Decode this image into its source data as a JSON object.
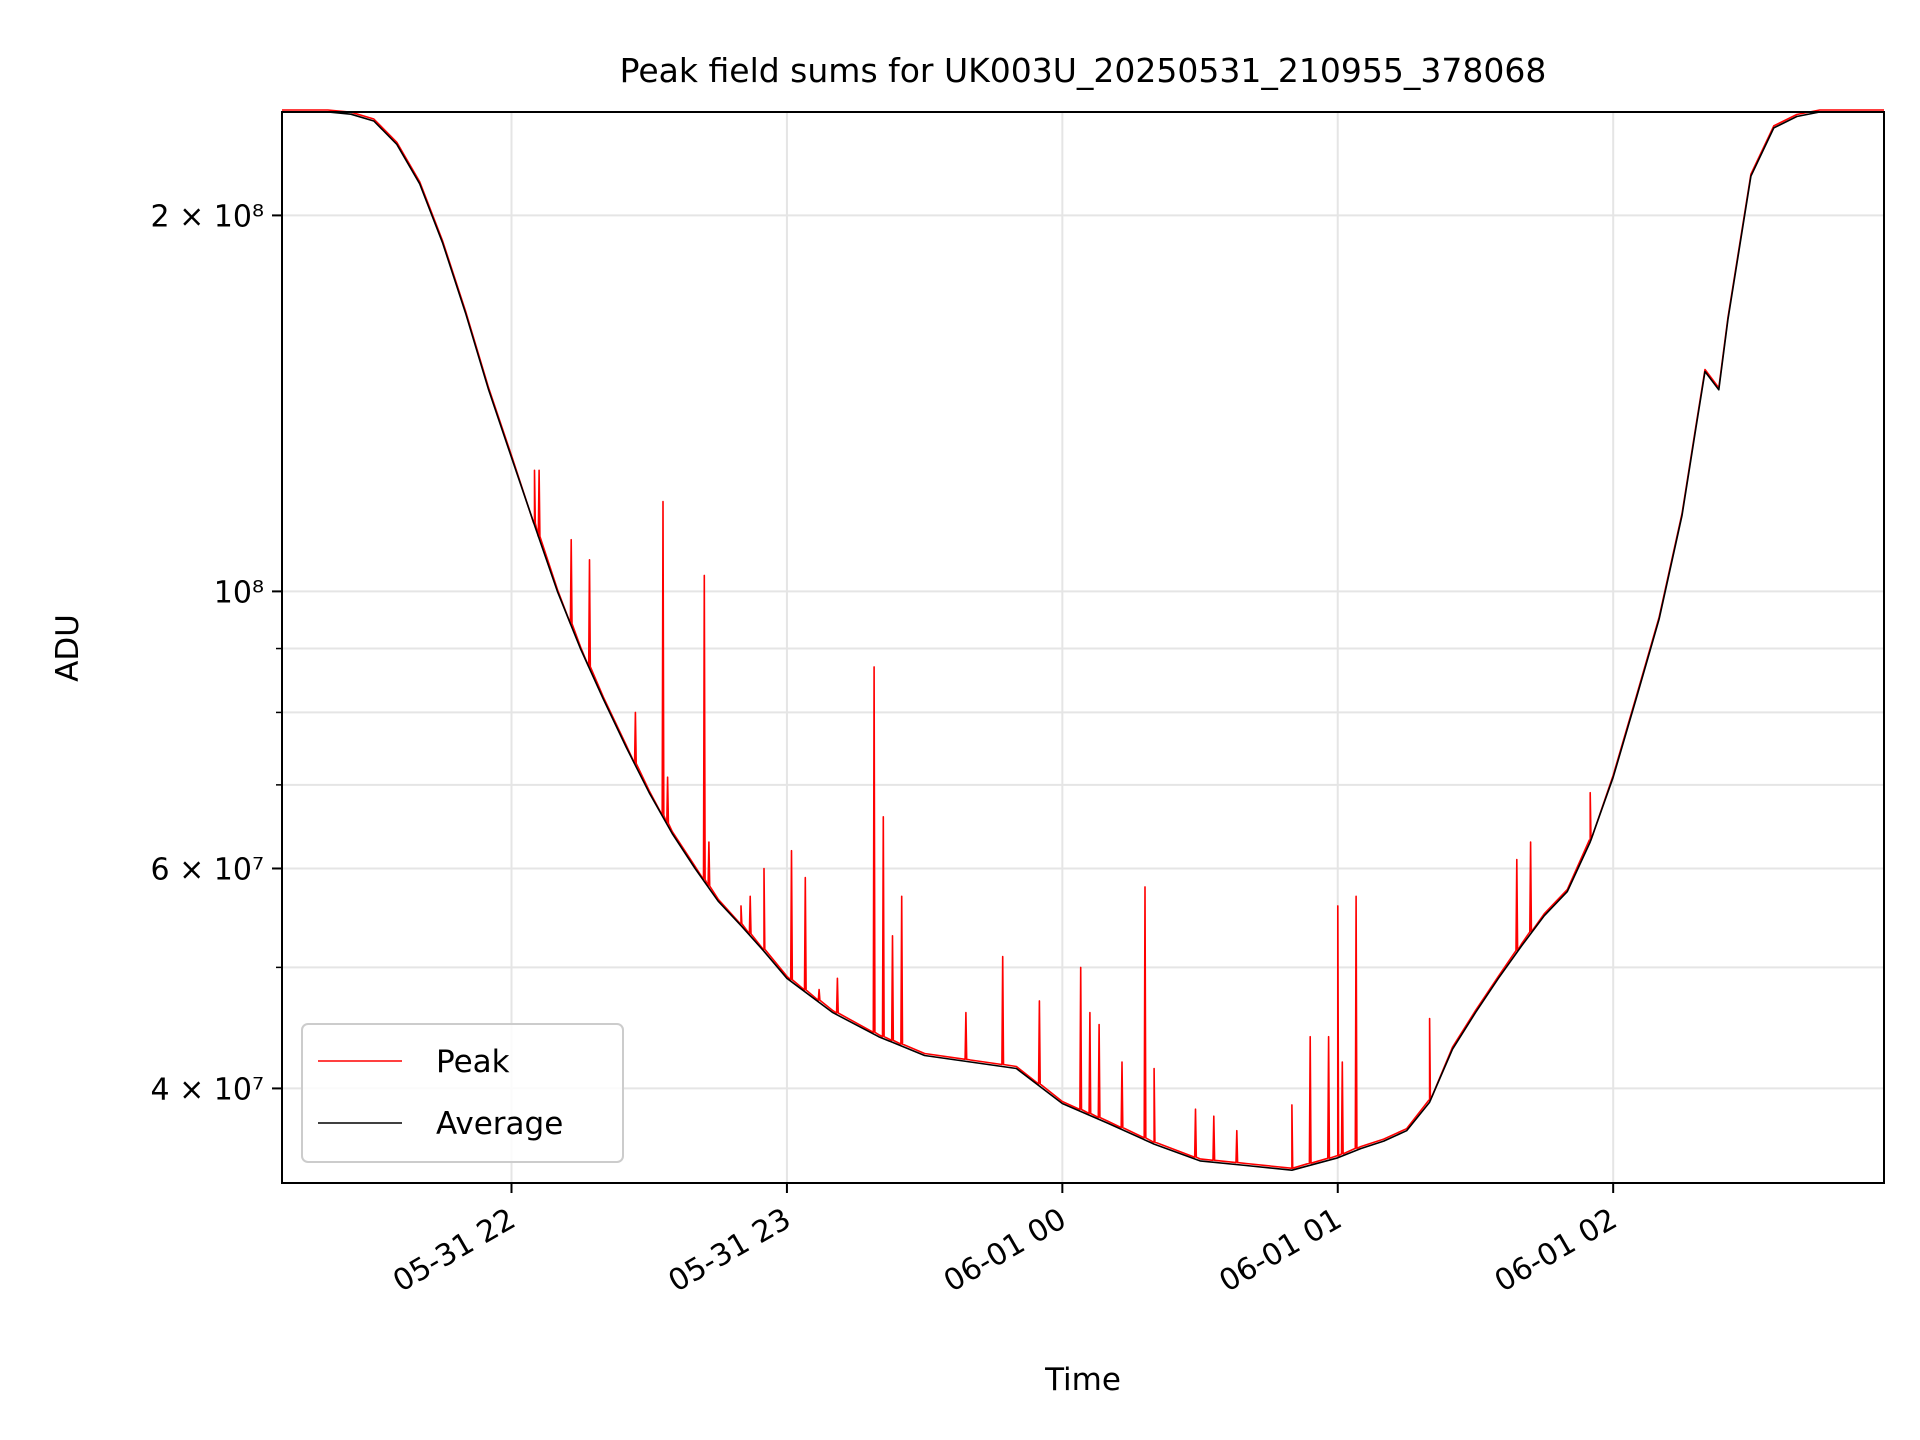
{
  "colors": {
    "peak": "#ff0000",
    "average": "#000000",
    "grid": "#e5e5e5",
    "axis": "#000000",
    "background": "#ffffff"
  },
  "chart_data": {
    "type": "line",
    "title": "Peak field sums for UK003U_20250531_210955_378068",
    "xlabel": "Time",
    "ylabel": "ADU",
    "y_scale": "log",
    "x_date_range": [
      "2025-05-31 21:10",
      "2025-06-01 02:59"
    ],
    "ylim": [
      33600000,
      242000000
    ],
    "x_ticks": [
      "05-31 22",
      "05-31 23",
      "06-01 00",
      "06-01 01",
      "06-01 02"
    ],
    "x_tick_times": [
      "2025-05-31 22:00",
      "2025-05-31 23:00",
      "2025-06-01 00:00",
      "2025-06-01 01:00",
      "2025-06-01 02:00"
    ],
    "y_ticks": [
      {
        "value": 40000000,
        "label": "4 × 10⁷"
      },
      {
        "value": 60000000,
        "label": "6 × 10⁷"
      },
      {
        "value": 100000000,
        "label": "10⁸"
      },
      {
        "value": 200000000,
        "label": "2 × 10⁸"
      }
    ],
    "y_minor_ticks": [
      50000000,
      70000000,
      80000000,
      90000000
    ],
    "grid": true,
    "legend_position": "lower-left",
    "series": [
      {
        "name": "Average",
        "color": "#000000",
        "x": [
          "2025-05-31 21:10",
          "2025-05-31 21:20",
          "2025-05-31 21:25",
          "2025-05-31 21:30",
          "2025-05-31 21:35",
          "2025-05-31 21:40",
          "2025-05-31 21:45",
          "2025-05-31 21:50",
          "2025-05-31 21:55",
          "2025-05-31 22:00",
          "2025-05-31 22:05",
          "2025-05-31 22:10",
          "2025-05-31 22:15",
          "2025-05-31 22:20",
          "2025-05-31 22:25",
          "2025-05-31 22:30",
          "2025-05-31 22:35",
          "2025-05-31 22:40",
          "2025-05-31 22:45",
          "2025-05-31 22:50",
          "2025-05-31 22:55",
          "2025-05-31 23:00",
          "2025-05-31 23:10",
          "2025-05-31 23:20",
          "2025-05-31 23:30",
          "2025-05-31 23:40",
          "2025-05-31 23:50",
          "2025-06-01 00:00",
          "2025-06-01 00:10",
          "2025-06-01 00:20",
          "2025-06-01 00:30",
          "2025-06-01 00:40",
          "2025-06-01 00:50",
          "2025-06-01 01:00",
          "2025-06-01 01:05",
          "2025-06-01 01:10",
          "2025-06-01 01:15",
          "2025-06-01 01:20",
          "2025-06-01 01:25",
          "2025-06-01 01:30",
          "2025-06-01 01:35",
          "2025-06-01 01:40",
          "2025-06-01 01:45",
          "2025-06-01 01:50",
          "2025-06-01 01:55",
          "2025-06-01 02:00",
          "2025-06-01 02:05",
          "2025-06-01 02:10",
          "2025-06-01 02:15",
          "2025-06-01 02:18",
          "2025-06-01 02:20",
          "2025-06-01 02:23",
          "2025-06-01 02:25",
          "2025-06-01 02:30",
          "2025-06-01 02:35",
          "2025-06-01 02:40",
          "2025-06-01 02:45",
          "2025-06-01 02:59"
        ],
        "values": [
          242000000,
          242000000,
          241000000,
          238000000,
          228000000,
          212000000,
          190000000,
          167000000,
          145000000,
          128000000,
          113000000,
          100000000,
          90000000,
          82000000,
          75000000,
          69000000,
          64000000,
          60000000,
          56500000,
          54000000,
          51500000,
          49000000,
          46000000,
          44000000,
          42500000,
          42000000,
          41500000,
          38900000,
          37500000,
          36100000,
          35000000,
          34700000,
          34400000,
          35200000,
          35800000,
          36300000,
          37000000,
          39000000,
          43000000,
          46000000,
          49000000,
          52000000,
          55000000,
          57500000,
          63000000,
          71000000,
          82000000,
          95000000,
          115000000,
          135000000,
          150000000,
          145000000,
          165000000,
          215000000,
          235000000,
          240000000,
          242000000,
          242000000
        ]
      },
      {
        "name": "Peak",
        "color": "#ff0000",
        "follows": "Average",
        "spikes": [
          {
            "x": "2025-05-31 22:05",
            "value": 125000000
          },
          {
            "x": "2025-05-31 22:06",
            "value": 125000000
          },
          {
            "x": "2025-05-31 22:13",
            "value": 110000000
          },
          {
            "x": "2025-05-31 22:17",
            "value": 106000000
          },
          {
            "x": "2025-05-31 22:27",
            "value": 80000000
          },
          {
            "x": "2025-05-31 22:33",
            "value": 118000000
          },
          {
            "x": "2025-05-31 22:34",
            "value": 71000000
          },
          {
            "x": "2025-05-31 22:42",
            "value": 103000000
          },
          {
            "x": "2025-05-31 22:43",
            "value": 63000000
          },
          {
            "x": "2025-05-31 22:50",
            "value": 56000000
          },
          {
            "x": "2025-05-31 22:52",
            "value": 57000000
          },
          {
            "x": "2025-05-31 22:55",
            "value": 60000000
          },
          {
            "x": "2025-05-31 23:01",
            "value": 62000000
          },
          {
            "x": "2025-05-31 23:04",
            "value": 59000000
          },
          {
            "x": "2025-05-31 23:07",
            "value": 48000000
          },
          {
            "x": "2025-05-31 23:11",
            "value": 49000000
          },
          {
            "x": "2025-05-31 23:19",
            "value": 87000000
          },
          {
            "x": "2025-05-31 23:21",
            "value": 66000000
          },
          {
            "x": "2025-05-31 23:23",
            "value": 53000000
          },
          {
            "x": "2025-05-31 23:25",
            "value": 57000000
          },
          {
            "x": "2025-05-31 23:39",
            "value": 46000000
          },
          {
            "x": "2025-05-31 23:47",
            "value": 51000000
          },
          {
            "x": "2025-05-31 23:55",
            "value": 47000000
          },
          {
            "x": "2025-06-01 00:04",
            "value": 50000000
          },
          {
            "x": "2025-06-01 00:06",
            "value": 46000000
          },
          {
            "x": "2025-06-01 00:08",
            "value": 45000000
          },
          {
            "x": "2025-06-01 00:13",
            "value": 42000000
          },
          {
            "x": "2025-06-01 00:18",
            "value": 58000000
          },
          {
            "x": "2025-06-01 00:20",
            "value": 41500000
          },
          {
            "x": "2025-06-01 00:29",
            "value": 38500000
          },
          {
            "x": "2025-06-01 00:33",
            "value": 38000000
          },
          {
            "x": "2025-06-01 00:38",
            "value": 37000000
          },
          {
            "x": "2025-06-01 00:50",
            "value": 38800000
          },
          {
            "x": "2025-06-01 00:54",
            "value": 44000000
          },
          {
            "x": "2025-06-01 00:58",
            "value": 44000000
          },
          {
            "x": "2025-06-01 01:00",
            "value": 56000000
          },
          {
            "x": "2025-06-01 01:01",
            "value": 42000000
          },
          {
            "x": "2025-06-01 01:04",
            "value": 57000000
          },
          {
            "x": "2025-06-01 01:20",
            "value": 45500000
          },
          {
            "x": "2025-06-01 01:39",
            "value": 61000000
          },
          {
            "x": "2025-06-01 01:42",
            "value": 63000000
          },
          {
            "x": "2025-06-01 01:55",
            "value": 69000000
          }
        ]
      }
    ]
  }
}
